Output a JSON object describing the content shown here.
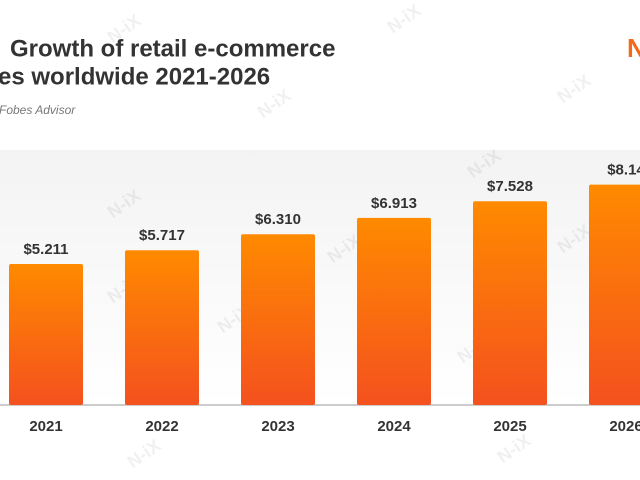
{
  "title_lines": [
    "Growth of retail e-commerce",
    "es worldwide 2021-2026"
  ],
  "source": "Fobes Advisor",
  "logo": "N",
  "watermark": "N-iX",
  "chart_data": {
    "type": "bar",
    "categories": [
      "2021",
      "2022",
      "2023",
      "2024",
      "2025",
      "2026"
    ],
    "values": [
      5.211,
      5.717,
      6.31,
      6.913,
      7.528,
      8.14
    ],
    "value_labels": [
      "$5.211",
      "$5.717",
      "$6.310",
      "$6.913",
      "$7.528",
      "$8.14"
    ],
    "colors": [
      "#ff8a00",
      "#f4511e"
    ],
    "ylim": [
      0,
      9.42
    ]
  }
}
